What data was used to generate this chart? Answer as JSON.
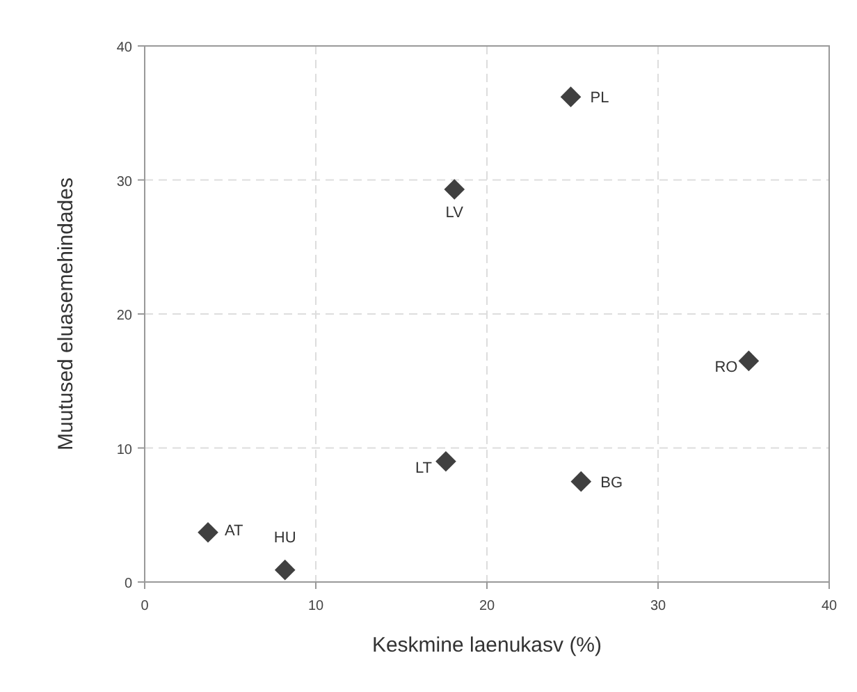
{
  "chart_data": {
    "type": "scatter",
    "xlabel": "Keskmine laenukasv (%)",
    "ylabel": "Muutused eluasemehindades",
    "x": [
      24.9,
      18.1,
      35.3,
      17.6,
      25.5,
      3.7,
      8.2
    ],
    "series": [
      {
        "color": "#404040",
        "values": [
          36.2,
          29.3,
          16.5,
          9.0,
          7.5,
          3.7,
          0.9
        ]
      }
    ],
    "xlim": [
      0,
      40
    ],
    "xticks": [
      0,
      10,
      20,
      30,
      40
    ],
    "ylim": [
      0,
      40
    ],
    "yticks": [
      0,
      10,
      20,
      30,
      40
    ],
    "grid": true,
    "marker": "diamond",
    "annotations": [
      {
        "text": "PL",
        "x": 24.9,
        "y": 36.2
      },
      {
        "text": "LV",
        "x": 18.1,
        "y": 29.3
      },
      {
        "text": "RO",
        "x": 35.3,
        "y": 16.5
      },
      {
        "text": "LT",
        "x": 17.6,
        "y": 9.0
      },
      {
        "text": "BG",
        "x": 25.5,
        "y": 7.5
      },
      {
        "text": "AT",
        "x": 3.7,
        "y": 3.7
      },
      {
        "text": "HU",
        "x": 8.2,
        "y": 0.9
      }
    ]
  }
}
